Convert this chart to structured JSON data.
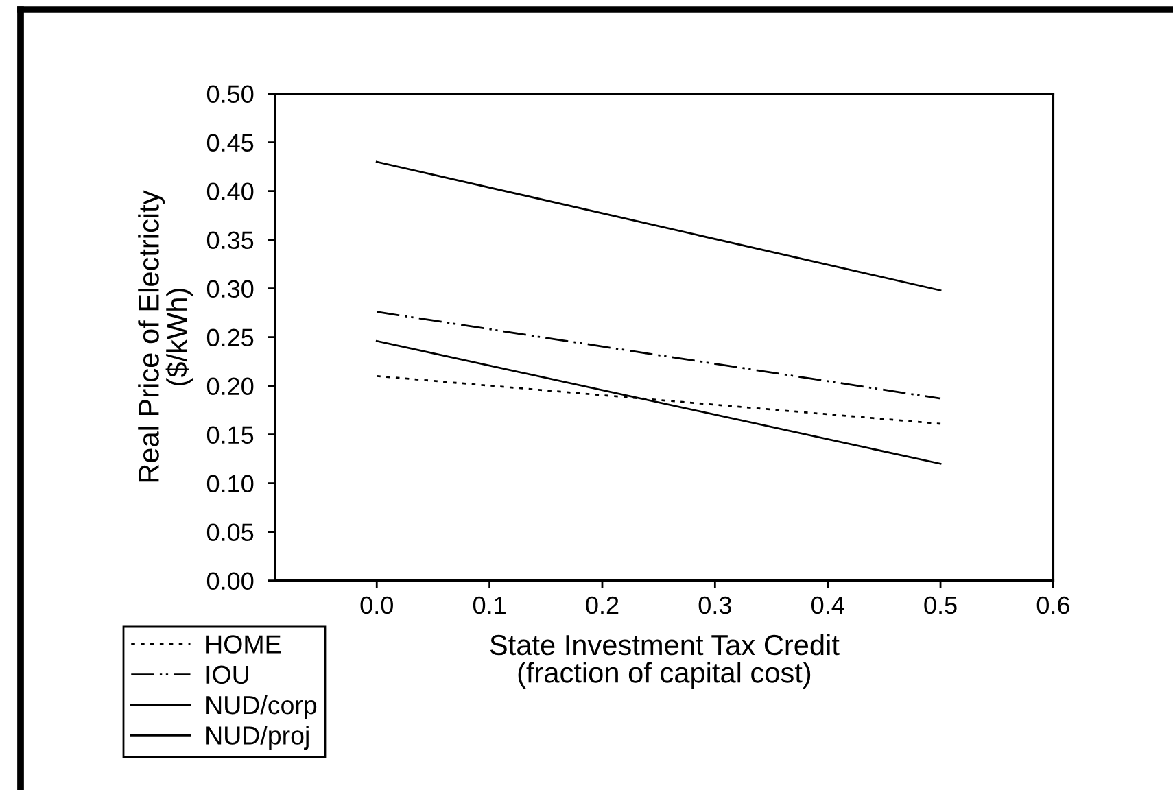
{
  "chart_data": {
    "type": "line",
    "xlabel": "State Investment Tax Credit\n(fraction of capital cost)",
    "ylabel": "Real Price of Electricity\n($/kWh)",
    "x": [
      0.0,
      0.5
    ],
    "series": [
      {
        "name": "HOME",
        "color": "#000000",
        "line_style": "dotted",
        "values": [
          0.21,
          0.161
        ]
      },
      {
        "name": "IOU",
        "color": "#000000",
        "line_style": "dashdotdot",
        "values": [
          0.276,
          0.187
        ]
      },
      {
        "name": "NUD/corp",
        "color": "#000000",
        "line_style": "solid",
        "values": [
          0.246,
          0.12
        ]
      },
      {
        "name": "NUD/proj",
        "color": "#000000",
        "line_style": "solid",
        "values": [
          0.43,
          0.298
        ]
      }
    ],
    "xlim": [
      -0.09,
      0.6
    ],
    "xticks": [
      {
        "value": 0.0,
        "label": "0.0"
      },
      0.1,
      0.2,
      0.3,
      0.4,
      0.5,
      0.6
    ],
    "ylim": [
      0.0,
      0.5
    ],
    "yticks": [
      {
        "value": 0.0,
        "label": "0.00"
      },
      {
        "value": 0.05,
        "label": "0.05"
      },
      {
        "value": 0.1,
        "label": "0.10"
      },
      {
        "value": 0.15,
        "label": "0.15"
      },
      {
        "value": 0.2,
        "label": "0.20"
      },
      {
        "value": 0.25,
        "label": "0.25"
      },
      {
        "value": 0.3,
        "label": "0.30"
      },
      {
        "value": 0.35,
        "label": "0.35"
      },
      {
        "value": 0.4,
        "label": "0.40"
      },
      {
        "value": 0.45,
        "label": "0.45"
      },
      {
        "value": 0.5,
        "label": "0.50"
      }
    ],
    "grid": false,
    "legend": "bottom left",
    "marker": "none"
  }
}
